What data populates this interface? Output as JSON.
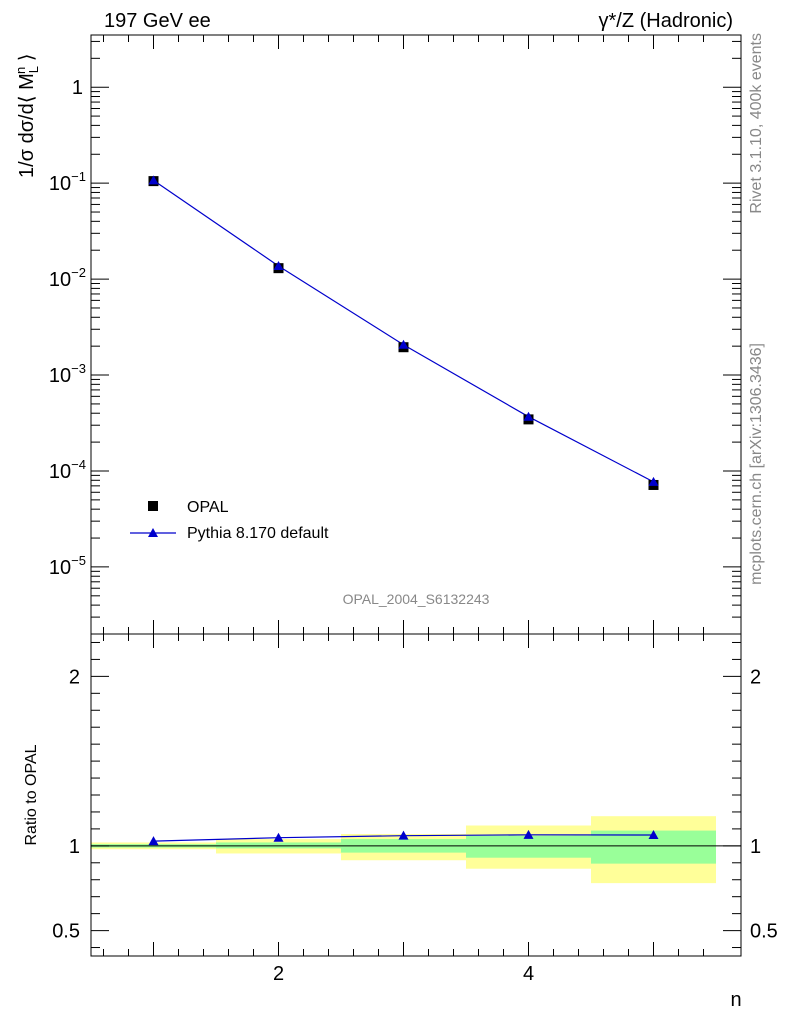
{
  "header": {
    "left_label": "197 GeV ee",
    "right_label": "γ*/Z (Hadronic)"
  },
  "side": {
    "rivet_label": "Rivet 3.1.10,  400k events",
    "mcplots_label": "mcplots.cern.ch [arXiv:1306.3436]"
  },
  "analysis_label": "OPAL_2004_S6132243",
  "chart_data": [
    {
      "type": "scatter",
      "panel": "main",
      "title": "197 GeV ee",
      "ylabel": "1/σ dσ/d⟨ M_L^n ⟩",
      "yscale": "log",
      "xlim": [
        0.5,
        5.7
      ],
      "ylim": [
        2e-06,
        3.5
      ],
      "y_ticks": [
        {
          "value": 1,
          "label": "1"
        },
        {
          "value": 0.1,
          "label": "10",
          "exp": "−1"
        },
        {
          "value": 0.01,
          "label": "10",
          "exp": "−2"
        },
        {
          "value": 0.001,
          "label": "10",
          "exp": "−3"
        },
        {
          "value": 0.0001,
          "label": "10",
          "exp": "−4"
        },
        {
          "value": 1e-05,
          "label": "10",
          "exp": "−5"
        }
      ],
      "legend_position": "bottom-left",
      "series": [
        {
          "name": "OPAL",
          "marker": "square",
          "color": "#000000",
          "x": [
            1,
            2,
            3,
            4,
            5
          ],
          "y": [
            0.105,
            0.013,
            0.00195,
            0.000345,
            7.15e-05
          ]
        },
        {
          "name": "Pythia 8.170 default",
          "marker": "triangle",
          "color": "#0000cc",
          "x": [
            1,
            2,
            3,
            4,
            5
          ],
          "y": [
            0.107,
            0.0137,
            0.00207,
            0.000368,
            7.7e-05
          ]
        }
      ]
    },
    {
      "type": "line",
      "panel": "ratio",
      "ylabel": "Ratio to OPAL",
      "xlabel": "n",
      "xlim": [
        0.5,
        5.7
      ],
      "ylim": [
        0.35,
        2.25
      ],
      "x_ticks": [
        {
          "value": 2,
          "label": "2"
        },
        {
          "value": 4,
          "label": "4"
        }
      ],
      "y_ticks": [
        {
          "value": 0.5,
          "label": "0.5"
        },
        {
          "value": 1,
          "label": "1"
        },
        {
          "value": 2,
          "label": "2"
        }
      ],
      "bands": [
        {
          "x_low": 0.5,
          "x_high": 1.5,
          "stat_low": 0.99,
          "stat_high": 1.01,
          "tot_low": 0.98,
          "tot_high": 1.02
        },
        {
          "x_low": 1.5,
          "x_high": 2.5,
          "stat_low": 0.985,
          "stat_high": 1.02,
          "tot_low": 0.955,
          "tot_high": 1.04
        },
        {
          "x_low": 2.5,
          "x_high": 3.5,
          "stat_low": 0.96,
          "stat_high": 1.04,
          "tot_low": 0.915,
          "tot_high": 1.07
        },
        {
          "x_low": 3.5,
          "x_high": 4.5,
          "stat_low": 0.93,
          "stat_high": 1.06,
          "tot_low": 0.865,
          "tot_high": 1.12
        },
        {
          "x_low": 4.5,
          "x_high": 5.5,
          "stat_low": 0.895,
          "stat_high": 1.09,
          "tot_low": 0.78,
          "tot_high": 1.175
        }
      ],
      "series": [
        {
          "name": "Pythia 8.170 default / OPAL",
          "marker": "triangle",
          "color": "#0000cc",
          "x": [
            1,
            2,
            3,
            4,
            5
          ],
          "y": [
            1.028,
            1.048,
            1.06,
            1.065,
            1.064
          ]
        }
      ],
      "stat_band_color": "#99ff99",
      "total_band_color": "#ffff99"
    }
  ]
}
